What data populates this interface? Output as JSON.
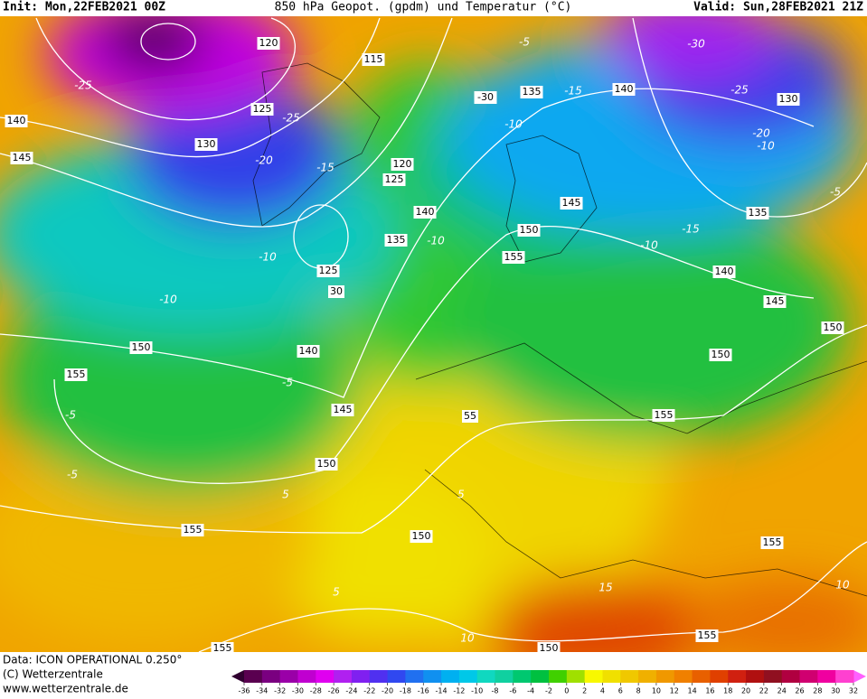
{
  "header": {
    "init": "Init: Mon,22FEB2021 00Z",
    "title": "850 hPa Geopot. (gpdm) und Temperatur (°C)",
    "valid": "Valid: Sun,28FEB2021 21Z"
  },
  "map": {
    "geopotential_labels": [
      "120",
      "115",
      "125",
      "130",
      "140",
      "145",
      "120",
      "125",
      "140",
      "135",
      "125",
      "30",
      "150",
      "155",
      "140",
      "145",
      "150",
      "155",
      "150",
      "55",
      "-30",
      "135",
      "140",
      "145",
      "150",
      "155",
      "130",
      "135",
      "140",
      "145",
      "150",
      "150",
      "155",
      "155",
      "155",
      "155",
      "150"
    ],
    "temperature_labels": [
      "-25",
      "-25",
      "-20",
      "-15",
      "-10",
      "-10",
      "-5",
      "-5",
      "-5",
      "5",
      "-5",
      "-15",
      "-30",
      "-25",
      "-20",
      "-10",
      "-10",
      "-5",
      "-15",
      "-10",
      "5",
      "5",
      "10",
      "15",
      "10",
      "-10"
    ]
  },
  "footer": {
    "data": "Data: ICON OPERATIONAL 0.250°",
    "copyright": "(C) Wetterzentrale",
    "url": "www.wetterzentrale.de"
  },
  "colorbar": {
    "ticks": [
      -36,
      -34,
      -32,
      -30,
      -28,
      -26,
      -24,
      -22,
      -20,
      -18,
      -16,
      -14,
      -12,
      -10,
      -8,
      -6,
      -4,
      -2,
      0,
      2,
      4,
      6,
      8,
      10,
      12,
      14,
      16,
      18,
      20,
      22,
      24,
      26,
      28,
      30,
      32
    ],
    "colors": [
      "#5a0050",
      "#7a0080",
      "#9a00a8",
      "#c000d0",
      "#e000f0",
      "#b020f0",
      "#8020f0",
      "#5030f0",
      "#3048f0",
      "#2070f0",
      "#1090f0",
      "#00b0f0",
      "#00c8e8",
      "#10d8c0",
      "#10d0a0",
      "#00c870",
      "#00c040",
      "#40d000",
      "#a0e000",
      "#f8f800",
      "#f0e000",
      "#f0c800",
      "#f0b000",
      "#f09800",
      "#f08000",
      "#e86000",
      "#e04000",
      "#d02010",
      "#b01010",
      "#901020",
      "#b00040",
      "#d00070",
      "#f000a0",
      "#ff40d0"
    ]
  }
}
